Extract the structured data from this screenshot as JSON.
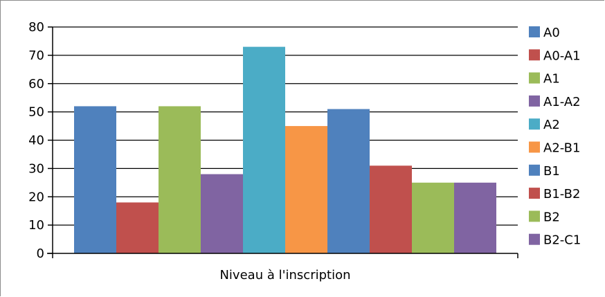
{
  "chart_data": {
    "type": "bar",
    "title": "",
    "xlabel": "Niveau à l'inscription",
    "ylabel": "",
    "ylim": [
      0,
      80
    ],
    "yticks": [
      0,
      10,
      20,
      30,
      40,
      50,
      60,
      70,
      80
    ],
    "grid": true,
    "legend_position": "right",
    "series": [
      {
        "name": "A0",
        "value": 52,
        "color": "#4F81BD"
      },
      {
        "name": "A0-A1",
        "value": 18,
        "color": "#C0504D"
      },
      {
        "name": "A1",
        "value": 52,
        "color": "#9BBB59"
      },
      {
        "name": "A1-A2",
        "value": 28,
        "color": "#8064A2"
      },
      {
        "name": "A2",
        "value": 73,
        "color": "#4BACC6"
      },
      {
        "name": "A2-B1",
        "value": 45,
        "color": "#F79646"
      },
      {
        "name": "B1",
        "value": 51,
        "color": "#4F81BD"
      },
      {
        "name": "B1-B2",
        "value": 31,
        "color": "#C0504D"
      },
      {
        "name": "B2",
        "value": 25,
        "color": "#9BBB59"
      },
      {
        "name": "B2-C1",
        "value": 25,
        "color": "#8064A2"
      }
    ]
  }
}
